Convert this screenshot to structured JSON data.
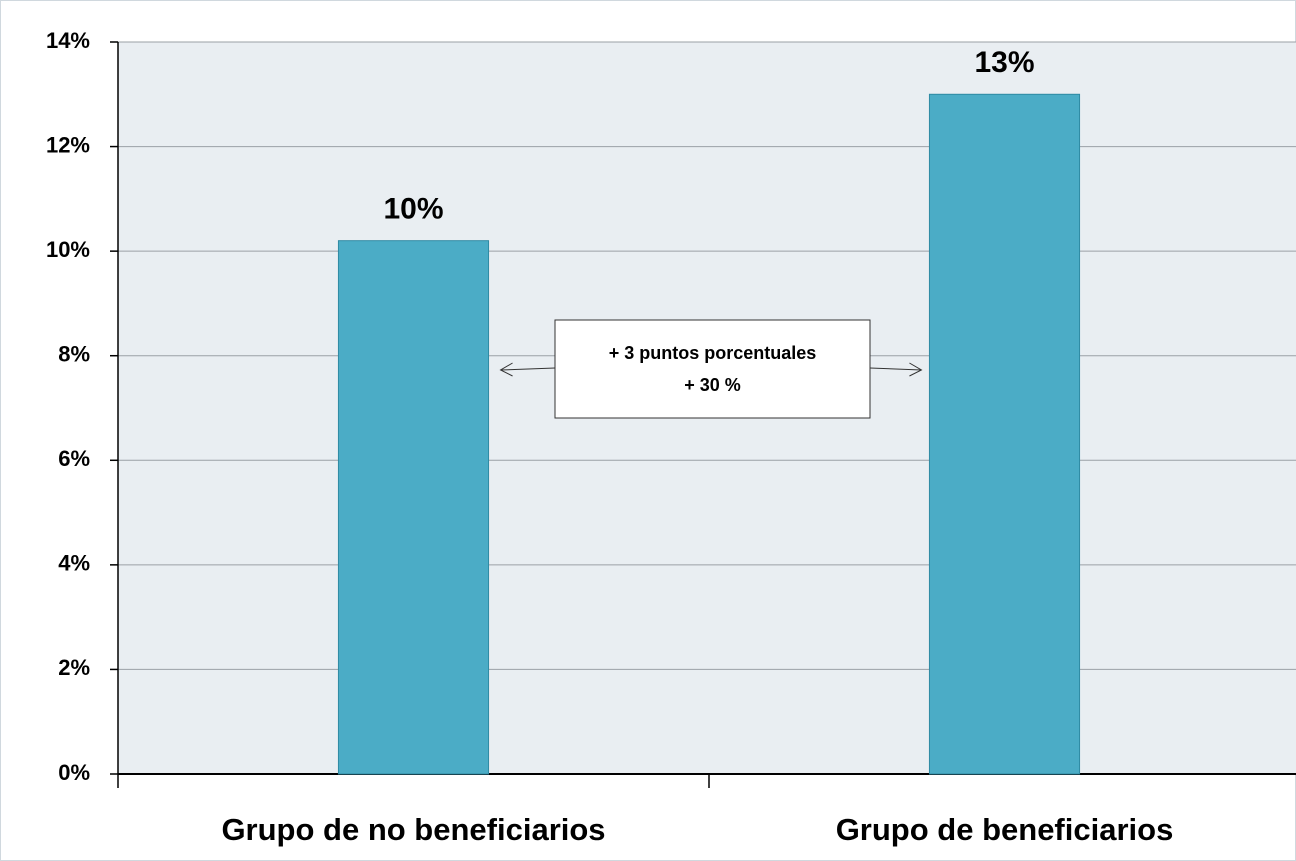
{
  "chart_data": {
    "type": "bar",
    "categories": [
      "Grupo de no beneficiarios",
      "Grupo de beneficiarios"
    ],
    "values": [
      10.2,
      13.0
    ],
    "value_labels": [
      "10%",
      "13%"
    ],
    "color": "#4bacc6",
    "ylim": [
      0,
      14
    ],
    "yticks": [
      {
        "value": 0,
        "label": "0%"
      },
      {
        "value": 2,
        "label": "2%"
      },
      {
        "value": 4,
        "label": "4%"
      },
      {
        "value": 6,
        "label": "6%"
      },
      {
        "value": 8,
        "label": "8%"
      },
      {
        "value": 10,
        "label": "10%"
      },
      {
        "value": 12,
        "label": "12%"
      },
      {
        "value": 14,
        "label": "14%"
      }
    ],
    "grid": true,
    "annotations": [
      "+ 3 puntos porcentuales",
      "+ 30 %"
    ]
  }
}
